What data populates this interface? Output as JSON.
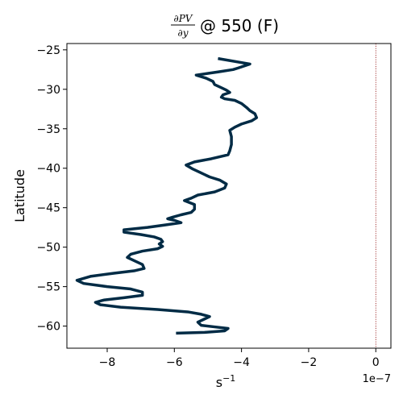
{
  "chart_data": {
    "type": "line",
    "title": {
      "numerator": "∂PV",
      "denominator": "∂y",
      "suffix": "@ 550 (F)"
    },
    "xlabel": {
      "base": "s",
      "exponent": "−1"
    },
    "ylabel": "Latitude",
    "x_offset_label": "1e−7",
    "xlim": [
      -9.2,
      0.45
    ],
    "ylim": [
      -62.8,
      -24.2
    ],
    "x_ticks": [
      {
        "value": -8,
        "label": "−8"
      },
      {
        "value": -6,
        "label": "−6"
      },
      {
        "value": -4,
        "label": "−4"
      },
      {
        "value": -2,
        "label": "−2"
      },
      {
        "value": 0,
        "label": "0"
      }
    ],
    "y_ticks": [
      {
        "value": -25,
        "label": "−25"
      },
      {
        "value": -30,
        "label": "−30"
      },
      {
        "value": -35,
        "label": "−35"
      },
      {
        "value": -40,
        "label": "−40"
      },
      {
        "value": -45,
        "label": "−45"
      },
      {
        "value": -50,
        "label": "−50"
      },
      {
        "value": -55,
        "label": "−55"
      },
      {
        "value": -60,
        "label": "−60"
      }
    ],
    "reference_line": {
      "x": 0,
      "color": "#8b0000",
      "style": "dotted"
    },
    "series": [
      {
        "color": "#002b45",
        "points": [
          [
            -4.7,
            -26.1
          ],
          [
            -3.75,
            -26.8
          ],
          [
            -4.1,
            -27.3
          ],
          [
            -4.25,
            -27.5
          ],
          [
            -4.7,
            -27.8
          ],
          [
            -5.35,
            -28.2
          ],
          [
            -5.05,
            -28.6
          ],
          [
            -4.85,
            -29.0
          ],
          [
            -4.8,
            -29.4
          ],
          [
            -4.6,
            -29.8
          ],
          [
            -4.45,
            -30.1
          ],
          [
            -4.35,
            -30.4
          ],
          [
            -4.55,
            -30.7
          ],
          [
            -4.6,
            -31.0
          ],
          [
            -4.5,
            -31.2
          ],
          [
            -4.2,
            -31.4
          ],
          [
            -4.0,
            -31.8
          ],
          [
            -3.85,
            -32.3
          ],
          [
            -3.75,
            -32.7
          ],
          [
            -3.6,
            -33.1
          ],
          [
            -3.55,
            -33.6
          ],
          [
            -3.7,
            -34.0
          ],
          [
            -4.0,
            -34.4
          ],
          [
            -4.2,
            -34.8
          ],
          [
            -4.35,
            -35.2
          ],
          [
            -4.3,
            -36.0
          ],
          [
            -4.3,
            -37.0
          ],
          [
            -4.35,
            -37.8
          ],
          [
            -4.4,
            -38.3
          ],
          [
            -4.9,
            -38.8
          ],
          [
            -5.4,
            -39.2
          ],
          [
            -5.65,
            -39.6
          ],
          [
            -5.45,
            -40.1
          ],
          [
            -5.2,
            -40.6
          ],
          [
            -4.95,
            -41.1
          ],
          [
            -4.65,
            -41.5
          ],
          [
            -4.45,
            -42.0
          ],
          [
            -4.5,
            -42.5
          ],
          [
            -4.8,
            -43.0
          ],
          [
            -5.3,
            -43.4
          ],
          [
            -5.5,
            -43.8
          ],
          [
            -5.7,
            -44.1
          ],
          [
            -5.4,
            -44.6
          ],
          [
            -5.4,
            -45.2
          ],
          [
            -5.5,
            -45.6
          ],
          [
            -5.8,
            -45.9
          ],
          [
            -6.05,
            -46.2
          ],
          [
            -6.2,
            -46.4
          ],
          [
            -6.0,
            -46.6
          ],
          [
            -5.8,
            -46.9
          ],
          [
            -6.3,
            -47.2
          ],
          [
            -6.8,
            -47.5
          ],
          [
            -7.5,
            -47.8
          ],
          [
            -7.5,
            -48.1
          ],
          [
            -7.0,
            -48.4
          ],
          [
            -6.6,
            -48.7
          ],
          [
            -6.4,
            -49.0
          ],
          [
            -6.35,
            -49.3
          ],
          [
            -6.45,
            -49.6
          ],
          [
            -6.35,
            -49.9
          ],
          [
            -6.5,
            -50.2
          ],
          [
            -6.95,
            -50.5
          ],
          [
            -7.3,
            -50.9
          ],
          [
            -7.4,
            -51.3
          ],
          [
            -7.2,
            -51.7
          ],
          [
            -6.95,
            -52.2
          ],
          [
            -6.9,
            -52.7
          ],
          [
            -7.2,
            -53.0
          ],
          [
            -7.8,
            -53.3
          ],
          [
            -8.5,
            -53.7
          ],
          [
            -8.9,
            -54.2
          ],
          [
            -8.7,
            -54.6
          ],
          [
            -8.0,
            -55.0
          ],
          [
            -7.3,
            -55.3
          ],
          [
            -6.95,
            -55.7
          ],
          [
            -6.95,
            -56.1
          ],
          [
            -7.5,
            -56.4
          ],
          [
            -8.1,
            -56.7
          ],
          [
            -8.35,
            -57.0
          ],
          [
            -8.2,
            -57.3
          ],
          [
            -7.6,
            -57.6
          ],
          [
            -6.5,
            -57.9
          ],
          [
            -5.6,
            -58.2
          ],
          [
            -5.2,
            -58.5
          ],
          [
            -4.95,
            -58.8
          ],
          [
            -5.1,
            -59.1
          ],
          [
            -5.3,
            -59.5
          ],
          [
            -5.2,
            -59.9
          ],
          [
            -4.8,
            -60.1
          ],
          [
            -4.4,
            -60.3
          ],
          [
            -4.5,
            -60.6
          ],
          [
            -5.1,
            -60.8
          ],
          [
            -5.95,
            -60.9
          ]
        ]
      }
    ]
  }
}
